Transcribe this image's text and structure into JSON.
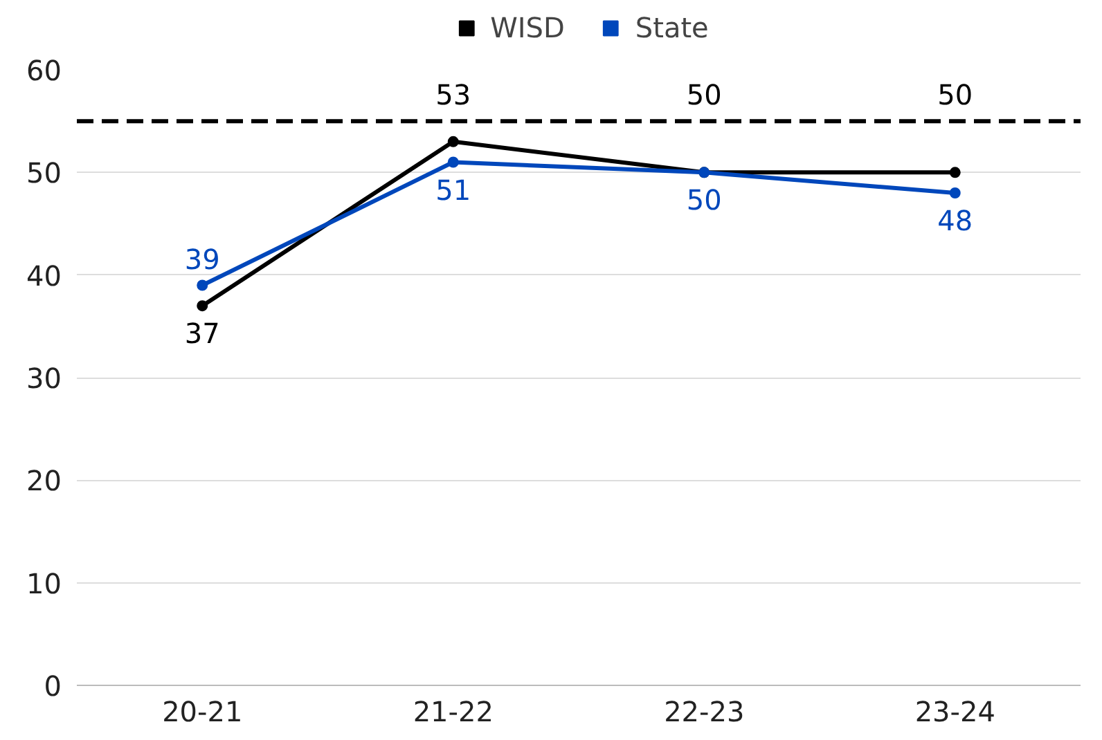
{
  "chart_data": {
    "type": "line",
    "categories": [
      "20-21",
      "21-22",
      "22-23",
      "23-24"
    ],
    "series": [
      {
        "name": "WISD",
        "color": "#000000",
        "values": [
          37,
          53,
          50,
          50
        ]
      },
      {
        "name": "State",
        "color": "#0047bb",
        "values": [
          39,
          51,
          50,
          48
        ]
      }
    ],
    "ylim": [
      0,
      60
    ],
    "yticks": [
      0,
      10,
      20,
      30,
      40,
      50,
      60
    ],
    "ref_lines": [
      {
        "axis": "y",
        "value": 55,
        "color": "#000000",
        "line_style": "dashed"
      }
    ],
    "grid": "y",
    "legend": "top",
    "marker": "circle",
    "line_style": "solid",
    "data_labels": true
  }
}
